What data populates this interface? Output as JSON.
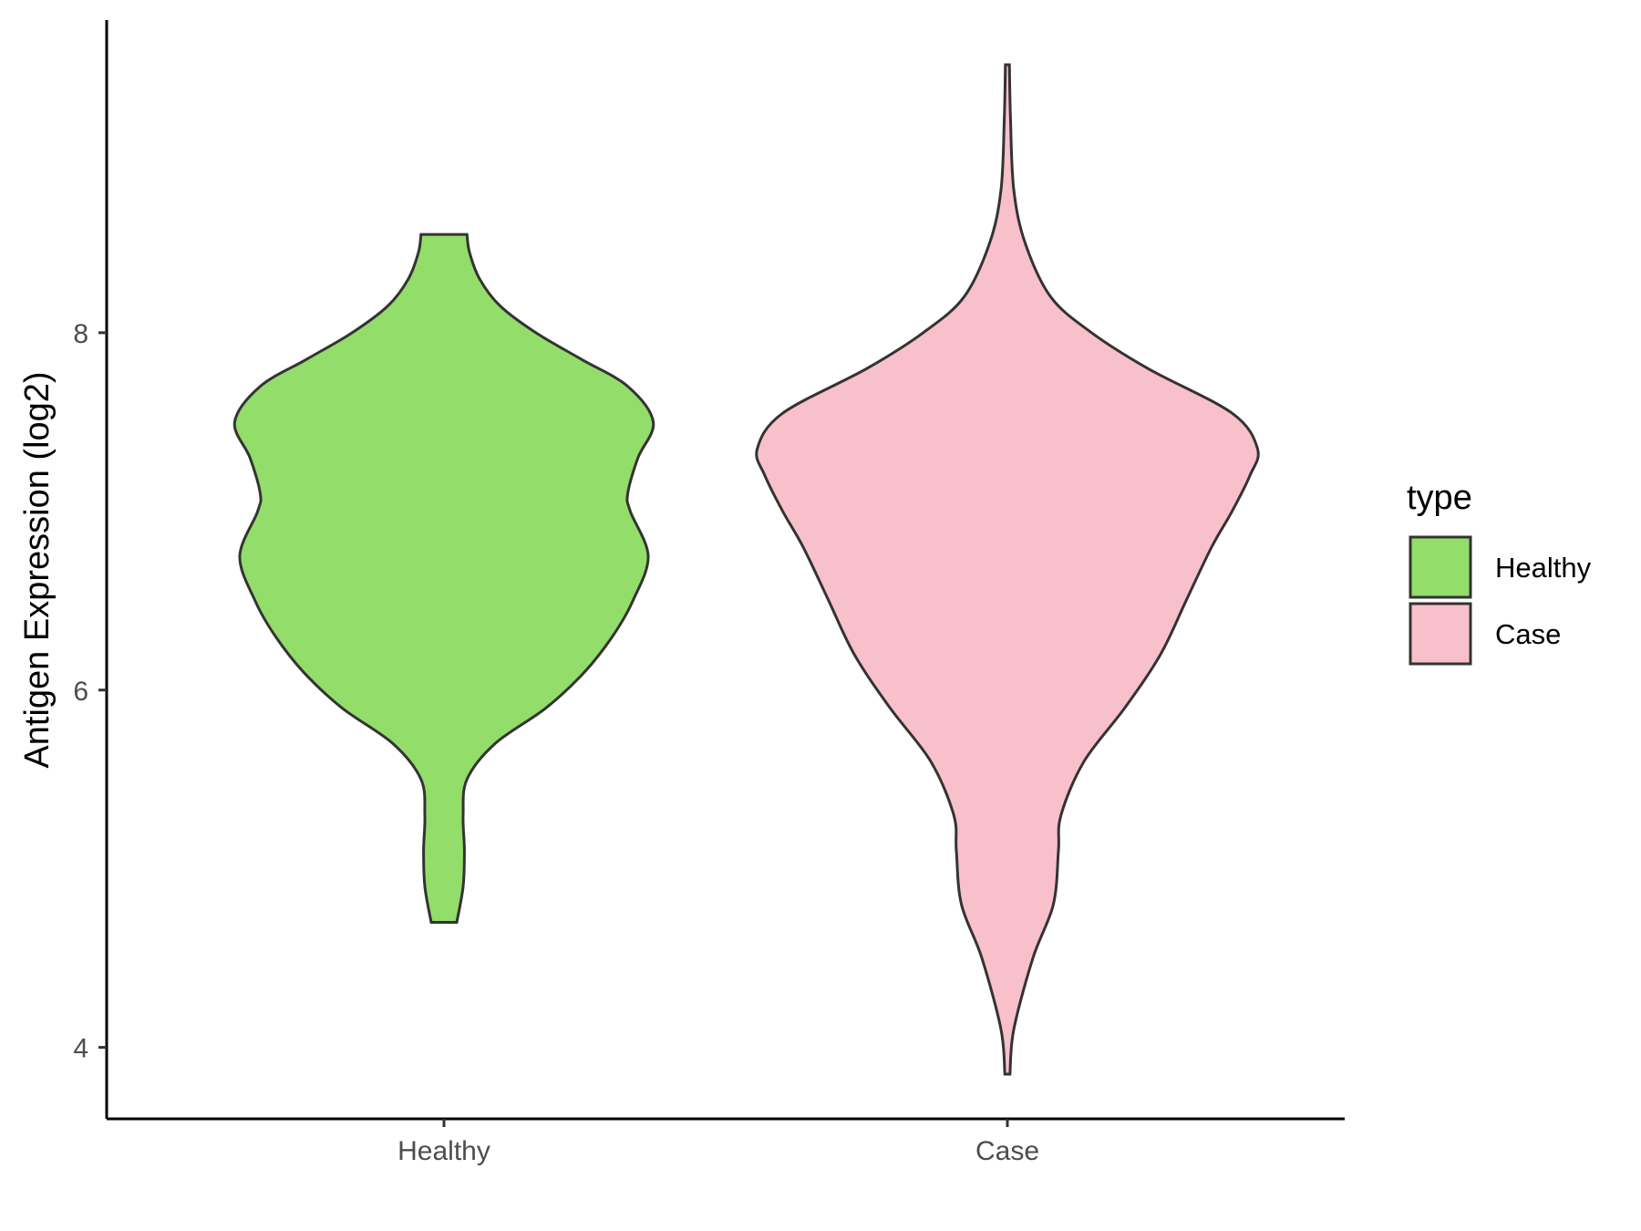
{
  "chart_data": {
    "type": "violin",
    "title": "",
    "xlabel": "",
    "ylabel": "Antigen Expression (log2)",
    "categories": [
      "Healthy",
      "Case"
    ],
    "ylim": [
      3.6,
      9.75
    ],
    "yticks": [
      4,
      6,
      8
    ],
    "ytick_labels": [
      "4",
      "6",
      "8"
    ],
    "grid": false,
    "legend": {
      "title": "type",
      "position": "right",
      "entries": [
        {
          "label": "Healthy",
          "color": "#93dd6a"
        },
        {
          "label": "Case",
          "color": "#f8c0cb"
        }
      ]
    },
    "series": [
      {
        "name": "Healthy",
        "color": "#93dd6a",
        "y_min": 4.7,
        "y_max": 8.55,
        "density_profile": [
          [
            4.7,
            0.05
          ],
          [
            4.9,
            0.075
          ],
          [
            5.1,
            0.08
          ],
          [
            5.3,
            0.075
          ],
          [
            5.5,
            0.09
          ],
          [
            5.7,
            0.2
          ],
          [
            5.9,
            0.4
          ],
          [
            6.1,
            0.55
          ],
          [
            6.3,
            0.66
          ],
          [
            6.5,
            0.74
          ],
          [
            6.75,
            0.8
          ],
          [
            7.0,
            0.73
          ],
          [
            7.1,
            0.72
          ],
          [
            7.3,
            0.76
          ],
          [
            7.5,
            0.82
          ],
          [
            7.7,
            0.72
          ],
          [
            7.85,
            0.54
          ],
          [
            8.0,
            0.36
          ],
          [
            8.15,
            0.22
          ],
          [
            8.3,
            0.14
          ],
          [
            8.45,
            0.1
          ],
          [
            8.55,
            0.09
          ]
        ]
      },
      {
        "name": "Case",
        "color": "#f8c0cb",
        "y_min": 3.85,
        "y_max": 9.5,
        "density_profile": [
          [
            3.85,
            0.01
          ],
          [
            4.1,
            0.025
          ],
          [
            4.5,
            0.1
          ],
          [
            4.8,
            0.18
          ],
          [
            5.1,
            0.2
          ],
          [
            5.3,
            0.21
          ],
          [
            5.6,
            0.3
          ],
          [
            5.9,
            0.46
          ],
          [
            6.2,
            0.6
          ],
          [
            6.5,
            0.7
          ],
          [
            6.8,
            0.8
          ],
          [
            7.0,
            0.88
          ],
          [
            7.2,
            0.95
          ],
          [
            7.35,
            0.98
          ],
          [
            7.55,
            0.88
          ],
          [
            7.8,
            0.55
          ],
          [
            8.0,
            0.33
          ],
          [
            8.2,
            0.17
          ],
          [
            8.5,
            0.07
          ],
          [
            8.8,
            0.025
          ],
          [
            9.2,
            0.012
          ],
          [
            9.5,
            0.008
          ]
        ]
      }
    ]
  }
}
